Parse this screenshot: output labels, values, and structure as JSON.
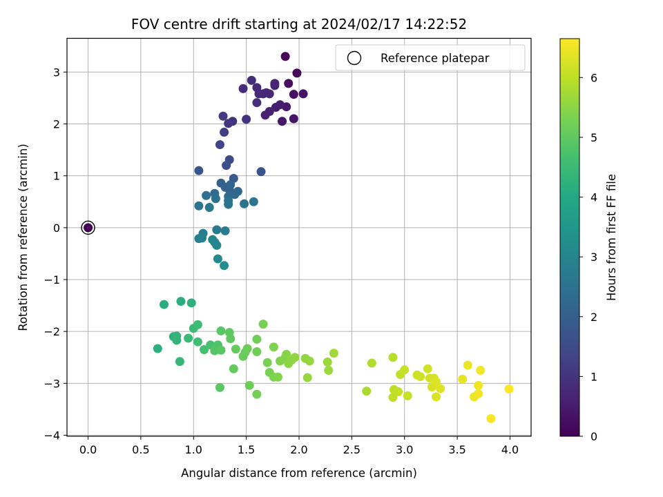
{
  "chart_data": {
    "type": "scatter",
    "title": "FOV centre drift starting at 2024/02/17 14:22:52",
    "xlabel": "Angular distance from reference (arcmin)",
    "ylabel": "Rotation from reference (arcmin)",
    "xlim": [
      -0.2,
      4.2
    ],
    "ylim": [
      -4.02,
      3.65
    ],
    "xticks": [
      0.0,
      0.5,
      1.0,
      1.5,
      2.0,
      2.5,
      3.0,
      3.5,
      4.0
    ],
    "xtick_labels": [
      "0.0",
      "0.5",
      "1.0",
      "1.5",
      "2.0",
      "2.5",
      "3.0",
      "3.5",
      "4.0"
    ],
    "yticks": [
      -4,
      -3,
      -2,
      -1,
      0,
      1,
      2,
      3
    ],
    "ytick_labels": [
      "−4",
      "−3",
      "−2",
      "−1",
      "0",
      "1",
      "2",
      "3"
    ],
    "grid": true,
    "legend": {
      "position": "top-right",
      "entries": [
        "Reference platepar"
      ]
    },
    "reference_point": {
      "x": 0.0,
      "y": 0.0,
      "label": "Reference platepar"
    },
    "colorbar": {
      "label": "Hours from first FF file",
      "colormap": "viridis",
      "range": [
        0,
        6.65
      ],
      "ticks": [
        0,
        1,
        2,
        3,
        4,
        5,
        6
      ],
      "tick_labels": [
        "0",
        "1",
        "2",
        "3",
        "4",
        "5",
        "6"
      ]
    },
    "points": [
      {
        "x": 0.0,
        "y": 0.0,
        "t": 0.0
      },
      {
        "x": 1.87,
        "y": 3.3,
        "t": 0.1
      },
      {
        "x": 1.98,
        "y": 2.98,
        "t": 0.15
      },
      {
        "x": 1.9,
        "y": 2.78,
        "t": 0.2
      },
      {
        "x": 1.95,
        "y": 2.57,
        "t": 0.25
      },
      {
        "x": 2.04,
        "y": 2.58,
        "t": 0.3
      },
      {
        "x": 1.95,
        "y": 2.1,
        "t": 0.35
      },
      {
        "x": 1.84,
        "y": 2.05,
        "t": 0.4
      },
      {
        "x": 1.88,
        "y": 2.33,
        "t": 0.45
      },
      {
        "x": 1.82,
        "y": 2.37,
        "t": 0.5
      },
      {
        "x": 1.78,
        "y": 2.32,
        "t": 0.55
      },
      {
        "x": 1.72,
        "y": 2.24,
        "t": 0.6
      },
      {
        "x": 1.68,
        "y": 2.17,
        "t": 0.62
      },
      {
        "x": 1.77,
        "y": 2.74,
        "t": 0.65
      },
      {
        "x": 1.77,
        "y": 2.78,
        "t": 0.68
      },
      {
        "x": 1.72,
        "y": 2.58,
        "t": 0.7
      },
      {
        "x": 1.66,
        "y": 2.58,
        "t": 0.72
      },
      {
        "x": 1.69,
        "y": 2.6,
        "t": 0.75
      },
      {
        "x": 1.62,
        "y": 2.58,
        "t": 0.78
      },
      {
        "x": 1.6,
        "y": 2.7,
        "t": 0.8
      },
      {
        "x": 1.55,
        "y": 2.84,
        "t": 0.82
      },
      {
        "x": 1.47,
        "y": 2.68,
        "t": 0.85
      },
      {
        "x": 1.6,
        "y": 2.41,
        "t": 0.88
      },
      {
        "x": 1.5,
        "y": 2.09,
        "t": 0.95
      },
      {
        "x": 1.37,
        "y": 2.05,
        "t": 1.0
      },
      {
        "x": 1.33,
        "y": 2.01,
        "t": 1.05
      },
      {
        "x": 1.28,
        "y": 2.15,
        "t": 1.1
      },
      {
        "x": 1.29,
        "y": 1.84,
        "t": 1.2
      },
      {
        "x": 1.25,
        "y": 1.6,
        "t": 1.35
      },
      {
        "x": 1.34,
        "y": 1.31,
        "t": 1.5
      },
      {
        "x": 1.31,
        "y": 1.2,
        "t": 1.6
      },
      {
        "x": 1.64,
        "y": 1.08,
        "t": 1.7
      },
      {
        "x": 1.05,
        "y": 1.1,
        "t": 1.75
      },
      {
        "x": 1.38,
        "y": 0.95,
        "t": 1.9
      },
      {
        "x": 1.26,
        "y": 0.86,
        "t": 2.0
      },
      {
        "x": 1.3,
        "y": 0.78,
        "t": 2.05
      },
      {
        "x": 1.34,
        "y": 0.73,
        "t": 2.1
      },
      {
        "x": 1.35,
        "y": 0.83,
        "t": 2.15
      },
      {
        "x": 1.42,
        "y": 0.7,
        "t": 2.2
      },
      {
        "x": 1.39,
        "y": 0.64,
        "t": 2.25
      },
      {
        "x": 1.33,
        "y": 0.6,
        "t": 2.3
      },
      {
        "x": 1.2,
        "y": 0.66,
        "t": 2.35
      },
      {
        "x": 1.12,
        "y": 0.62,
        "t": 2.4
      },
      {
        "x": 1.21,
        "y": 0.56,
        "t": 2.45
      },
      {
        "x": 1.33,
        "y": 0.52,
        "t": 2.5
      },
      {
        "x": 1.33,
        "y": 0.45,
        "t": 2.55
      },
      {
        "x": 1.48,
        "y": 0.46,
        "t": 2.55
      },
      {
        "x": 1.57,
        "y": 0.5,
        "t": 2.6
      },
      {
        "x": 1.05,
        "y": 0.42,
        "t": 2.6
      },
      {
        "x": 1.15,
        "y": 0.39,
        "t": 2.65
      },
      {
        "x": 1.22,
        "y": -0.04,
        "t": 2.7
      },
      {
        "x": 1.3,
        "y": -0.06,
        "t": 2.75
      },
      {
        "x": 1.09,
        "y": -0.11,
        "t": 2.8
      },
      {
        "x": 1.05,
        "y": -0.21,
        "t": 2.85
      },
      {
        "x": 1.08,
        "y": -0.2,
        "t": 2.9
      },
      {
        "x": 1.18,
        "y": -0.23,
        "t": 2.95
      },
      {
        "x": 1.2,
        "y": -0.28,
        "t": 3.0
      },
      {
        "x": 1.22,
        "y": -0.34,
        "t": 3.05
      },
      {
        "x": 1.23,
        "y": -0.6,
        "t": 3.1
      },
      {
        "x": 1.29,
        "y": -0.73,
        "t": 3.2
      },
      {
        "x": 0.72,
        "y": -1.48,
        "t": 4.1
      },
      {
        "x": 0.88,
        "y": -1.42,
        "t": 4.15
      },
      {
        "x": 0.98,
        "y": -1.45,
        "t": 4.2
      },
      {
        "x": 0.66,
        "y": -2.33,
        "t": 4.2
      },
      {
        "x": 0.81,
        "y": -2.1,
        "t": 4.25
      },
      {
        "x": 0.84,
        "y": -2.09,
        "t": 4.3
      },
      {
        "x": 0.84,
        "y": -2.17,
        "t": 4.35
      },
      {
        "x": 0.87,
        "y": -2.58,
        "t": 4.4
      },
      {
        "x": 0.95,
        "y": -2.13,
        "t": 4.45
      },
      {
        "x": 1.0,
        "y": -1.94,
        "t": 4.5
      },
      {
        "x": 1.04,
        "y": -1.87,
        "t": 4.55
      },
      {
        "x": 1.04,
        "y": -2.2,
        "t": 4.6
      },
      {
        "x": 1.1,
        "y": -2.35,
        "t": 4.65
      },
      {
        "x": 1.16,
        "y": -2.26,
        "t": 4.7
      },
      {
        "x": 1.2,
        "y": -2.32,
        "t": 4.75
      },
      {
        "x": 1.23,
        "y": -2.26,
        "t": 4.8
      },
      {
        "x": 1.2,
        "y": -2.37,
        "t": 4.85
      },
      {
        "x": 1.26,
        "y": -2.36,
        "t": 4.9
      },
      {
        "x": 1.26,
        "y": -1.99,
        "t": 4.9
      },
      {
        "x": 1.25,
        "y": -3.08,
        "t": 4.95
      },
      {
        "x": 1.34,
        "y": -2.02,
        "t": 5.0
      },
      {
        "x": 1.35,
        "y": -2.14,
        "t": 5.0
      },
      {
        "x": 1.4,
        "y": -2.34,
        "t": 5.05
      },
      {
        "x": 1.38,
        "y": -2.72,
        "t": 5.05
      },
      {
        "x": 1.47,
        "y": -2.48,
        "t": 5.1
      },
      {
        "x": 1.49,
        "y": -2.4,
        "t": 5.1
      },
      {
        "x": 1.51,
        "y": -2.33,
        "t": 5.15
      },
      {
        "x": 1.53,
        "y": -3.04,
        "t": 5.15
      },
      {
        "x": 1.6,
        "y": -2.15,
        "t": 5.2
      },
      {
        "x": 1.6,
        "y": -2.39,
        "t": 5.2
      },
      {
        "x": 1.6,
        "y": -3.21,
        "t": 5.25
      },
      {
        "x": 1.66,
        "y": -1.86,
        "t": 5.25
      },
      {
        "x": 1.7,
        "y": -2.6,
        "t": 5.3
      },
      {
        "x": 1.72,
        "y": -2.79,
        "t": 5.3
      },
      {
        "x": 1.76,
        "y": -2.3,
        "t": 5.35
      },
      {
        "x": 1.76,
        "y": -2.88,
        "t": 5.35
      },
      {
        "x": 1.8,
        "y": -2.88,
        "t": 5.4
      },
      {
        "x": 1.82,
        "y": -2.57,
        "t": 5.4
      },
      {
        "x": 1.87,
        "y": -2.5,
        "t": 5.45
      },
      {
        "x": 1.88,
        "y": -2.44,
        "t": 5.45
      },
      {
        "x": 1.9,
        "y": -2.62,
        "t": 5.5
      },
      {
        "x": 1.93,
        "y": -2.55,
        "t": 5.5
      },
      {
        "x": 1.96,
        "y": -2.5,
        "t": 5.55
      },
      {
        "x": 2.06,
        "y": -2.52,
        "t": 5.55
      },
      {
        "x": 2.1,
        "y": -2.57,
        "t": 5.6
      },
      {
        "x": 2.08,
        "y": -2.89,
        "t": 5.6
      },
      {
        "x": 2.27,
        "y": -2.59,
        "t": 5.65
      },
      {
        "x": 2.28,
        "y": -2.75,
        "t": 5.65
      },
      {
        "x": 2.33,
        "y": -2.42,
        "t": 5.7
      },
      {
        "x": 2.64,
        "y": -3.15,
        "t": 5.8
      },
      {
        "x": 2.69,
        "y": -2.61,
        "t": 5.85
      },
      {
        "x": 2.89,
        "y": -2.5,
        "t": 5.95
      },
      {
        "x": 2.9,
        "y": -3.12,
        "t": 6.0
      },
      {
        "x": 2.89,
        "y": -3.27,
        "t": 6.0
      },
      {
        "x": 2.94,
        "y": -3.16,
        "t": 6.05
      },
      {
        "x": 2.96,
        "y": -2.83,
        "t": 6.05
      },
      {
        "x": 3.0,
        "y": -2.74,
        "t": 6.1
      },
      {
        "x": 3.03,
        "y": -3.24,
        "t": 6.1
      },
      {
        "x": 3.12,
        "y": -2.84,
        "t": 6.15
      },
      {
        "x": 3.15,
        "y": -2.87,
        "t": 6.15
      },
      {
        "x": 3.22,
        "y": -2.72,
        "t": 6.2
      },
      {
        "x": 3.24,
        "y": -2.9,
        "t": 6.2
      },
      {
        "x": 3.26,
        "y": -3.07,
        "t": 6.25
      },
      {
        "x": 3.28,
        "y": -2.9,
        "t": 6.25
      },
      {
        "x": 3.3,
        "y": -2.97,
        "t": 6.3
      },
      {
        "x": 3.3,
        "y": -3.26,
        "t": 6.3
      },
      {
        "x": 3.34,
        "y": -3.1,
        "t": 6.35
      },
      {
        "x": 3.55,
        "y": -2.92,
        "t": 6.4
      },
      {
        "x": 3.6,
        "y": -2.65,
        "t": 6.45
      },
      {
        "x": 3.66,
        "y": -3.26,
        "t": 6.45
      },
      {
        "x": 3.7,
        "y": -3.2,
        "t": 6.5
      },
      {
        "x": 3.7,
        "y": -3.04,
        "t": 6.5
      },
      {
        "x": 3.72,
        "y": -2.75,
        "t": 6.55
      },
      {
        "x": 3.82,
        "y": -3.68,
        "t": 6.6
      },
      {
        "x": 3.99,
        "y": -3.11,
        "t": 6.65
      }
    ]
  }
}
